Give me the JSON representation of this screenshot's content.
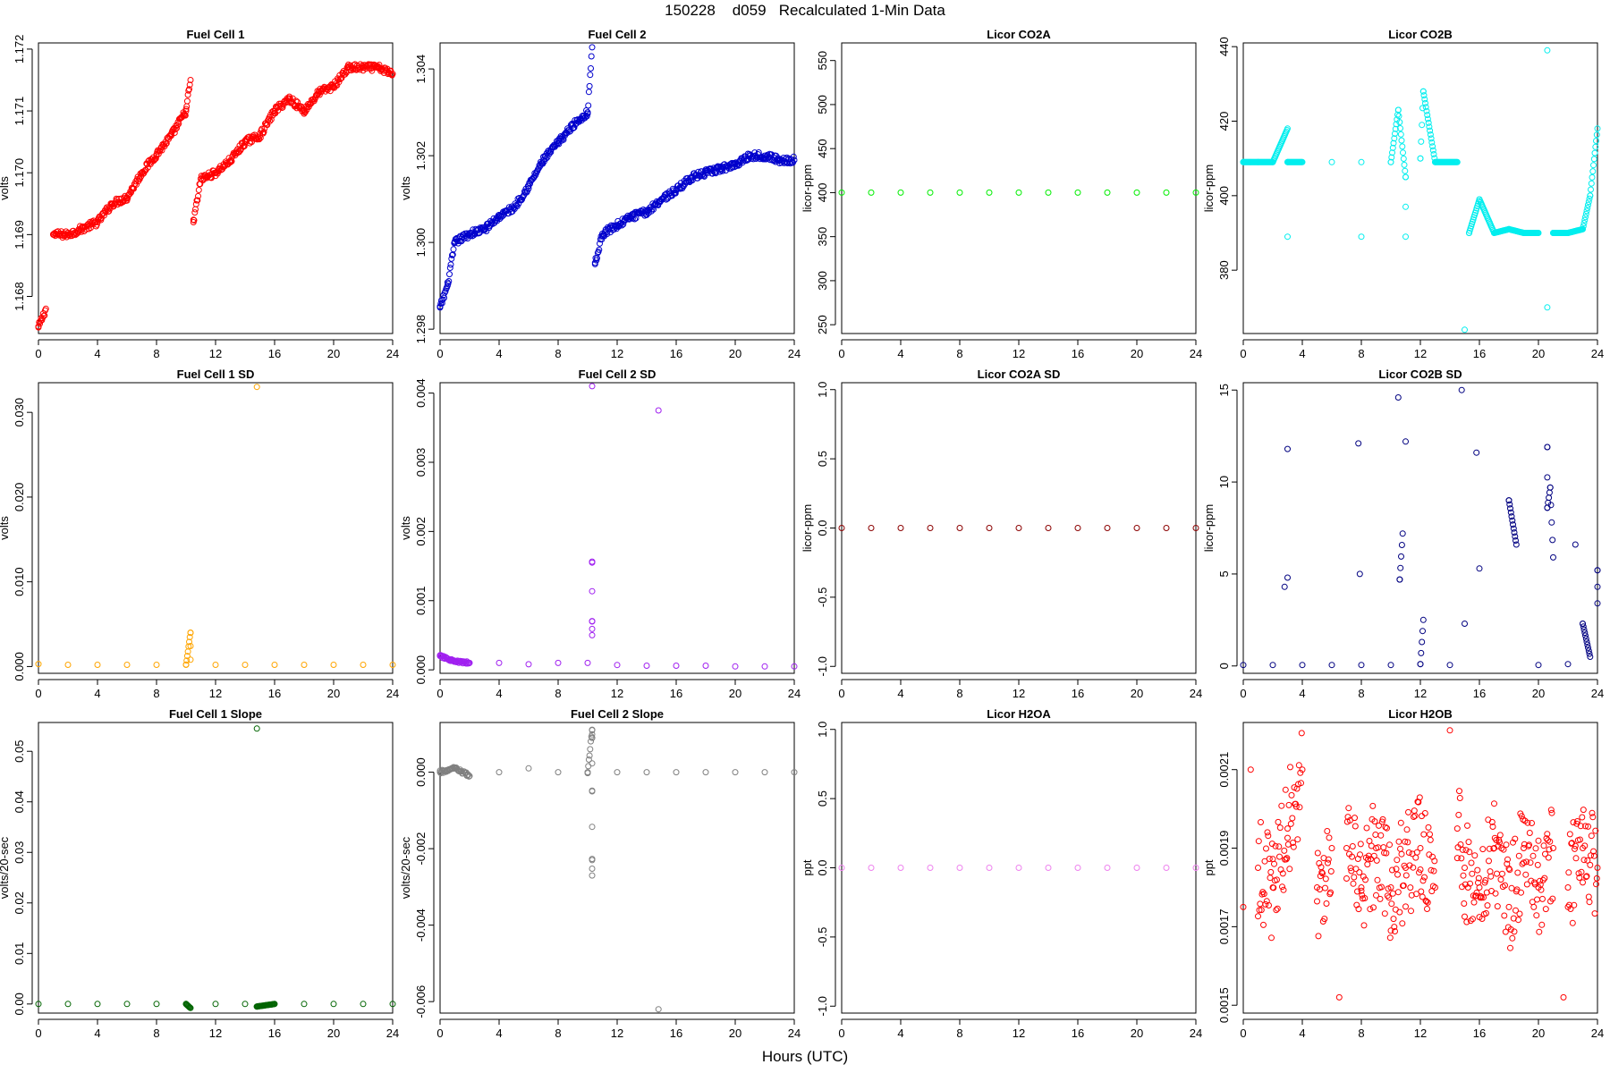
{
  "figure": {
    "title": "150228    d059   Recalculated 1-Min Data",
    "xlabel": "Hours (UTC)"
  },
  "chart_data": [
    {
      "type": "scatter",
      "title": "Fuel Cell 1",
      "ylabel": "volts",
      "color": "#ff0000",
      "xlim": [
        0,
        24
      ],
      "ylim": [
        1.1674,
        1.1721
      ],
      "xticks": [
        0,
        4,
        8,
        12,
        16,
        20,
        24
      ],
      "xtick_labels": [
        "0",
        "4",
        "8",
        "12",
        "16",
        "20",
        "24"
      ],
      "yticks": [
        1.168,
        1.169,
        1.17,
        1.171,
        1.172
      ],
      "ytick_labels": [
        "1.168",
        "1.169",
        "1.170",
        "1.171",
        "1.172"
      ],
      "series": [
        {
          "x": [
            0,
            0.5,
            1,
            2,
            3,
            4,
            5,
            6,
            7,
            8,
            9,
            10,
            10.3,
            10.5,
            11,
            12,
            13,
            14,
            15,
            16,
            17,
            18,
            19,
            20,
            21,
            22,
            23,
            24
          ],
          "y": [
            1.1675,
            1.1678,
            1.169,
            1.169,
            1.1691,
            1.1692,
            1.1695,
            1.1696,
            1.17,
            1.1703,
            1.1706,
            1.171,
            1.1715,
            1.1692,
            1.1699,
            1.17,
            1.1702,
            1.1705,
            1.1706,
            1.171,
            1.1712,
            1.171,
            1.1713,
            1.1714,
            1.1717,
            1.1717,
            1.1717,
            1.1716
          ]
        }
      ]
    },
    {
      "type": "scatter",
      "title": "Fuel Cell 2",
      "ylabel": "volts",
      "color": "#0000cc",
      "xlim": [
        0,
        24
      ],
      "ylim": [
        1.2979,
        1.3046
      ],
      "xticks": [
        0,
        4,
        8,
        12,
        16,
        20,
        24
      ],
      "xtick_labels": [
        "0",
        "4",
        "8",
        "12",
        "16",
        "20",
        "24"
      ],
      "yticks": [
        1.298,
        1.3,
        1.302,
        1.304
      ],
      "ytick_labels": [
        "1.298",
        "1.300",
        "1.302",
        "1.304"
      ],
      "series": [
        {
          "x": [
            0,
            0.5,
            1,
            2,
            3,
            4,
            5,
            6,
            7,
            8,
            9,
            10,
            10.3,
            10.5,
            11,
            12,
            13,
            14,
            15,
            16,
            17,
            18,
            19,
            20,
            21,
            22,
            23,
            24
          ],
          "y": [
            1.2985,
            1.299,
            1.3,
            1.3002,
            1.3003,
            1.3006,
            1.3008,
            1.3013,
            1.3019,
            1.3023,
            1.3027,
            1.303,
            1.3045,
            1.2995,
            1.3002,
            1.3004,
            1.3006,
            1.3007,
            1.301,
            1.3012,
            1.3015,
            1.3016,
            1.3017,
            1.3018,
            1.302,
            1.302,
            1.3019,
            1.3019
          ]
        }
      ]
    },
    {
      "type": "scatter",
      "title": "Licor CO2A",
      "ylabel": "licor-ppm",
      "color": "#00ee00",
      "xlim": [
        0,
        24
      ],
      "ylim": [
        240,
        570
      ],
      "xticks": [
        0,
        4,
        8,
        12,
        16,
        20,
        24
      ],
      "xtick_labels": [
        "0",
        "4",
        "8",
        "12",
        "16",
        "20",
        "24"
      ],
      "yticks": [
        250,
        300,
        350,
        400,
        450,
        500,
        550
      ],
      "ytick_labels": [
        "250",
        "300",
        "350",
        "400",
        "450",
        "500",
        "550"
      ],
      "series": [
        {
          "x": [
            0,
            2,
            4,
            6,
            8,
            10,
            12,
            14,
            16,
            18,
            20,
            22,
            24
          ],
          "y": [
            400,
            400,
            400,
            400,
            400,
            400,
            400,
            400,
            400,
            400,
            400,
            400,
            400
          ]
        }
      ]
    },
    {
      "type": "scatter",
      "title": "Licor CO2B",
      "ylabel": "licor-ppm",
      "color": "#00eeee",
      "xlim": [
        0,
        24
      ],
      "ylim": [
        363,
        441
      ],
      "xticks": [
        0,
        4,
        8,
        12,
        16,
        20,
        24
      ],
      "xtick_labels": [
        "0",
        "4",
        "8",
        "12",
        "16",
        "20",
        "24"
      ],
      "yticks": [
        380,
        400,
        420,
        440
      ],
      "ytick_labels": [
        "380",
        "400",
        "420",
        "440"
      ],
      "series": [
        {
          "x": [
            0,
            1,
            2,
            3,
            3,
            3,
            4,
            6,
            8,
            8,
            10,
            10.5,
            11,
            11,
            12,
            12.2,
            13,
            14.5,
            15,
            15.3,
            16,
            17,
            18,
            19,
            20,
            20.6,
            20.6,
            21,
            22,
            23,
            23.5,
            24
          ],
          "y": [
            409,
            409,
            409,
            418,
            389,
            409,
            409,
            409,
            409,
            389,
            409,
            423,
            405,
            389,
            410,
            428,
            409,
            409,
            364,
            390,
            399,
            390,
            391,
            390,
            390,
            439,
            370,
            390,
            390,
            391,
            400,
            418
          ]
        }
      ]
    },
    {
      "type": "scatter",
      "title": "Fuel Cell 1 SD",
      "ylabel": "volts",
      "color": "#ffa500",
      "xlim": [
        0,
        24
      ],
      "ylim": [
        -0.0008,
        0.0335
      ],
      "xticks": [
        0,
        4,
        8,
        12,
        16,
        20,
        24
      ],
      "xtick_labels": [
        "0",
        "4",
        "8",
        "12",
        "16",
        "20",
        "24"
      ],
      "yticks": [
        0.0,
        0.01,
        0.02,
        0.03
      ],
      "ytick_labels": [
        "0.000",
        "0.010",
        "0.020",
        "0.030"
      ],
      "series": [
        {
          "x": [
            0,
            2,
            4,
            6,
            8,
            10,
            10.3,
            10.3,
            12,
            14,
            14.8,
            16,
            18,
            20,
            22,
            24
          ],
          "y": [
            0.0003,
            0.0002,
            0.0002,
            0.0002,
            0.0002,
            0.0002,
            0.004,
            0.0008,
            0.0002,
            0.0002,
            0.033,
            0.0002,
            0.0002,
            0.0002,
            0.0002,
            0.0002
          ]
        }
      ]
    },
    {
      "type": "scatter",
      "title": "Fuel Cell 2 SD",
      "ylabel": "volts",
      "color": "#a020f0",
      "xlim": [
        0,
        24
      ],
      "ylim": [
        -5e-05,
        0.00415
      ],
      "xticks": [
        0,
        4,
        8,
        12,
        16,
        20,
        24
      ],
      "xtick_labels": [
        "0",
        "4",
        "8",
        "12",
        "16",
        "20",
        "24"
      ],
      "yticks": [
        0.0,
        0.001,
        0.002,
        0.003,
        0.004
      ],
      "ytick_labels": [
        "0.000",
        "0.001",
        "0.002",
        "0.003",
        "0.004"
      ],
      "series": [
        {
          "x": [
            0,
            1,
            2,
            4,
            6,
            8,
            10,
            10.3,
            10.3,
            10.3,
            10.3,
            12,
            14,
            14.8,
            16,
            18,
            20,
            22,
            24
          ],
          "y": [
            0.0002,
            0.00012,
            0.0001,
            0.0001,
            8e-05,
            0.0001,
            0.0001,
            0.0041,
            0.00155,
            0.0007,
            0.0005,
            7e-05,
            6e-05,
            0.00375,
            6e-05,
            6e-05,
            5e-05,
            5e-05,
            5e-05
          ]
        }
      ]
    },
    {
      "type": "scatter",
      "title": "Licor CO2A SD",
      "ylabel": "licor-ppm",
      "color": "#8b0000",
      "xlim": [
        0,
        24
      ],
      "ylim": [
        -1.05,
        1.05
      ],
      "xticks": [
        0,
        4,
        8,
        12,
        16,
        20,
        24
      ],
      "xtick_labels": [
        "0",
        "4",
        "8",
        "12",
        "16",
        "20",
        "24"
      ],
      "yticks": [
        -1.0,
        -0.5,
        0.0,
        0.5,
        1.0
      ],
      "ytick_labels": [
        "-1.0",
        "-0.5",
        "0.0",
        "0.5",
        "1.0"
      ],
      "series": [
        {
          "x": [
            0,
            2,
            4,
            6,
            8,
            10,
            12,
            14,
            16,
            18,
            20,
            22,
            24
          ],
          "y": [
            0,
            0,
            0,
            0,
            0,
            0,
            0,
            0,
            0,
            0,
            0,
            0,
            0
          ]
        }
      ]
    },
    {
      "type": "scatter",
      "title": "Licor CO2B SD",
      "ylabel": "licor-ppm",
      "color": "#000080",
      "xlim": [
        0,
        24
      ],
      "ylim": [
        -0.4,
        15.4
      ],
      "xticks": [
        0,
        4,
        8,
        12,
        16,
        20,
        24
      ],
      "xtick_labels": [
        "0",
        "4",
        "8",
        "12",
        "16",
        "20",
        "24"
      ],
      "yticks": [
        0,
        5,
        10,
        15
      ],
      "ytick_labels": [
        "0",
        "5",
        "10",
        "15"
      ],
      "series": [
        {
          "x": [
            0,
            2,
            2.8,
            3,
            3,
            4,
            6,
            7.8,
            7.9,
            8,
            10,
            10.5,
            10.6,
            10.8,
            11,
            12,
            12.2,
            14,
            14.8,
            15,
            15.8,
            16,
            18,
            18.5,
            20,
            20.6,
            20.6,
            20.8,
            21,
            22,
            22.5,
            23,
            23.5,
            24,
            24
          ],
          "y": [
            0.05,
            0.05,
            4.3,
            11.8,
            4.8,
            0.05,
            0.05,
            12.1,
            5,
            0.05,
            0.05,
            14.6,
            4.7,
            7.2,
            12.2,
            0.1,
            2.5,
            0.05,
            15,
            2.3,
            11.6,
            5.3,
            9,
            6.6,
            0.05,
            11.9,
            8.6,
            9.7,
            5.9,
            0.1,
            6.6,
            2.3,
            0.5,
            5.2,
            3.4
          ]
        }
      ]
    },
    {
      "type": "scatter",
      "title": "Fuel Cell 1 Slope",
      "ylabel": "volts/20-sec",
      "color": "#006400",
      "xlim": [
        0,
        24
      ],
      "ylim": [
        -0.0018,
        0.0557
      ],
      "xticks": [
        0,
        4,
        8,
        12,
        16,
        20,
        24
      ],
      "xtick_labels": [
        "0",
        "4",
        "8",
        "12",
        "16",
        "20",
        "24"
      ],
      "yticks": [
        0.0,
        0.01,
        0.02,
        0.03,
        0.04,
        0.05
      ],
      "ytick_labels": [
        "0.00",
        "0.01",
        "0.02",
        "0.03",
        "0.04",
        "0.05"
      ],
      "series": [
        {
          "x": [
            0,
            2,
            4,
            6,
            8,
            10,
            10.3,
            12,
            14,
            14.8,
            14.8,
            16,
            18,
            20,
            22,
            24
          ],
          "y": [
            0,
            0,
            0,
            0,
            0,
            0,
            -0.0008,
            0,
            0,
            0.0545,
            -0.0005,
            0,
            0,
            0,
            0,
            0
          ]
        }
      ]
    },
    {
      "type": "scatter",
      "title": "Fuel Cell 2 Slope",
      "ylabel": "volts/20-sec",
      "color": "#808080",
      "xlim": [
        0,
        24
      ],
      "ylim": [
        -0.0063,
        0.0013
      ],
      "xticks": [
        0,
        4,
        8,
        12,
        16,
        20,
        24
      ],
      "xtick_labels": [
        "0",
        "4",
        "8",
        "12",
        "16",
        "20",
        "24"
      ],
      "yticks": [
        0.0,
        -0.002,
        -0.004,
        -0.006
      ],
      "ytick_labels": [
        "0.000",
        "-0.002",
        "-0.004",
        "-0.006"
      ],
      "series": [
        {
          "x": [
            0,
            1,
            2,
            4,
            6,
            8,
            10,
            10.3,
            10.3,
            10.3,
            10.3,
            10.3,
            12,
            14,
            14.8,
            16,
            18,
            20,
            22,
            24
          ],
          "y": [
            0,
            0.0001,
            -0.0001,
            0,
            0.0001,
            0,
            0,
            0.0011,
            0.0009,
            -0.0005,
            -0.0023,
            -0.0027,
            0,
            0,
            -0.0062,
            0,
            0,
            0,
            0,
            0
          ]
        }
      ]
    },
    {
      "type": "scatter",
      "title": "Licor H2OA",
      "ylabel": "ppt",
      "color": "#ee82ee",
      "xlim": [
        0,
        24
      ],
      "ylim": [
        -1.05,
        1.05
      ],
      "xticks": [
        0,
        4,
        8,
        12,
        16,
        20,
        24
      ],
      "xtick_labels": [
        "0",
        "4",
        "8",
        "12",
        "16",
        "20",
        "24"
      ],
      "yticks": [
        -1.0,
        -0.5,
        0.0,
        0.5,
        1.0
      ],
      "ytick_labels": [
        "-1.0",
        "-0.5",
        "0.0",
        "0.5",
        "1.0"
      ],
      "series": [
        {
          "x": [
            0,
            2,
            4,
            6,
            8,
            10,
            12,
            14,
            16,
            18,
            20,
            22,
            24
          ],
          "y": [
            0,
            0,
            0,
            0,
            0,
            0,
            0,
            0,
            0,
            0,
            0,
            0,
            0
          ]
        }
      ]
    },
    {
      "type": "scatter",
      "title": "Licor H2OB",
      "ylabel": "ppt",
      "color": "#ff0000",
      "xlim": [
        0,
        24
      ],
      "ylim": [
        0.00148,
        0.00222
      ],
      "xticks": [
        0,
        4,
        8,
        12,
        16,
        20,
        24
      ],
      "xtick_labels": [
        "0",
        "4",
        "8",
        "12",
        "16",
        "20",
        "24"
      ],
      "yticks": [
        0.0015,
        0.0017,
        0.0019,
        0.0021
      ],
      "ytick_labels": [
        "0.0015",
        "0.0017",
        "0.0019",
        "0.0021"
      ],
      "series": [
        {
          "x": [
            0,
            0.5,
            1,
            2,
            3,
            4,
            5,
            6,
            6.5,
            7,
            8,
            9,
            10,
            11,
            12,
            13,
            14,
            14.5,
            15,
            16,
            17,
            18,
            19,
            20,
            21,
            21.7,
            22,
            23,
            24
          ],
          "y": [
            0.00175,
            0.0021,
            0.00185,
            0.0018,
            0.00195,
            0.0021,
            0.0018,
            0.0019,
            0.00152,
            0.0019,
            0.0018,
            0.0019,
            0.0018,
            0.00185,
            0.0019,
            0.0018,
            0.0022,
            0.00195,
            0.00185,
            0.0018,
            0.0019,
            0.00175,
            0.0019,
            0.0018,
            0.0019,
            0.00152,
            0.0018,
            0.0019,
            0.00185
          ]
        }
      ]
    }
  ]
}
